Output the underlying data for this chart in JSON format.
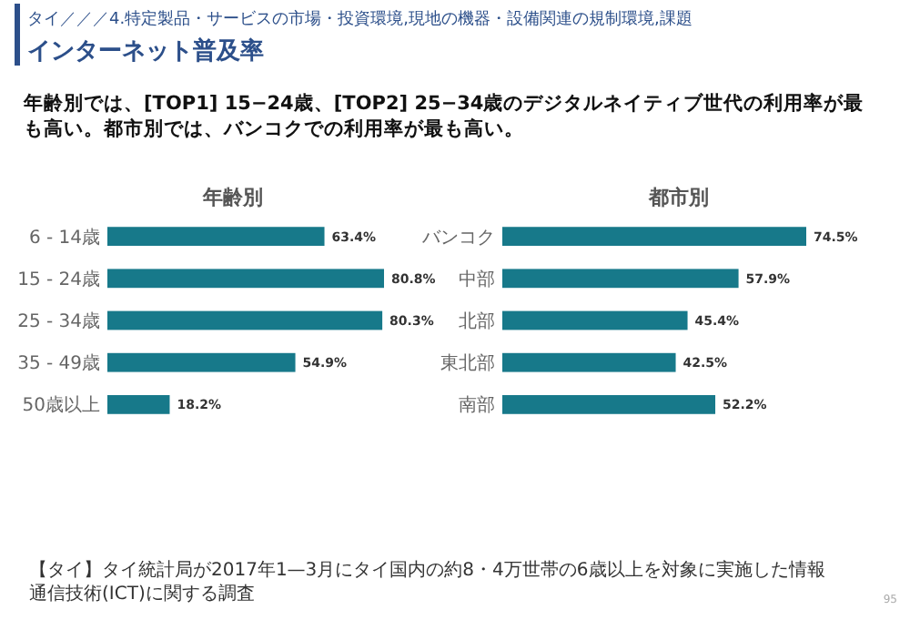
{
  "chart_data": [
    {
      "type": "bar",
      "orientation": "horizontal",
      "title": "年齢別",
      "categories": [
        "6 - 14歳",
        "15 - 24歳",
        "25 - 34歳",
        "35 - 49歳",
        "50歳以上"
      ],
      "values": [
        63.4,
        80.8,
        80.3,
        54.9,
        18.2
      ],
      "value_labels": [
        "63.4%",
        "80.8%",
        "80.3%",
        "54.9%",
        "18.2%"
      ],
      "color": "#17798a",
      "annotations": [
        "タイ／／／4.特定製品・サービスの市場・投資環境,現地の機器・設備関連の規制環境,課題",
        "インターネット普及率",
        "年齢別では、[TOP1] 15−24歳、[TOP2] 25−34歳のデジタルネイティブ世代の利用率が最も高い。都市別では、バンコクでの利用率が最も高い。",
        "【タイ】タイ統計局が2017年1—3月にタイ国内の約8・4万世帯の6歳以上を対象に実施した情報通信技術(ICT)に関する調査",
        "95"
      ]
    },
    {
      "type": "bar",
      "orientation": "horizontal",
      "title": "都市別",
      "categories": [
        "バンコク",
        "中部",
        "北部",
        "東北部",
        "南部"
      ],
      "values": [
        74.5,
        57.9,
        45.4,
        42.5,
        52.2
      ],
      "value_labels": [
        "74.5%",
        "57.9%",
        "45.4%",
        "42.5%",
        "52.2%"
      ],
      "color": "#17798a"
    }
  ]
}
